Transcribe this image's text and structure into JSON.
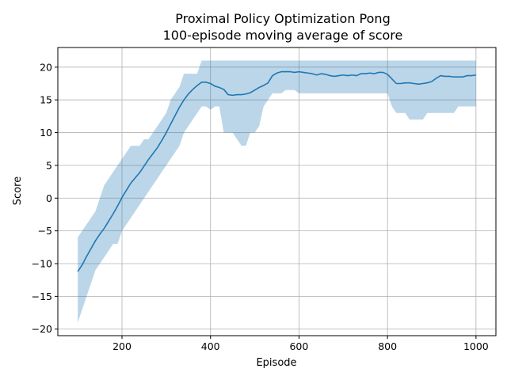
{
  "chart_data": {
    "type": "line",
    "title": "Proximal Policy Optimization Pong",
    "subtitle": "100-episode moving average of score",
    "xlabel": "Episode",
    "ylabel": "Score",
    "xlim": [
      55,
      1045
    ],
    "ylim": [
      -21,
      23
    ],
    "xticks": [
      200,
      400,
      600,
      800,
      1000
    ],
    "yticks": [
      -20,
      -15,
      -10,
      -5,
      0,
      5,
      10,
      15,
      20
    ],
    "grid": true,
    "series": [
      {
        "color": "#1f77b4",
        "band_color": "#1f77b4",
        "x": [
          100,
          110,
          120,
          130,
          140,
          150,
          160,
          170,
          180,
          190,
          200,
          210,
          220,
          230,
          240,
          250,
          260,
          270,
          280,
          290,
          300,
          310,
          320,
          330,
          340,
          350,
          360,
          370,
          380,
          390,
          400,
          410,
          420,
          430,
          440,
          450,
          460,
          470,
          480,
          490,
          500,
          510,
          520,
          530,
          540,
          550,
          560,
          570,
          580,
          590,
          600,
          610,
          620,
          630,
          640,
          650,
          660,
          670,
          680,
          690,
          700,
          710,
          720,
          730,
          740,
          750,
          760,
          770,
          780,
          790,
          800,
          810,
          820,
          830,
          840,
          850,
          860,
          870,
          880,
          890,
          900,
          910,
          920,
          930,
          940,
          950,
          960,
          970,
          980,
          990,
          1000
        ],
        "mean": [
          -11.2,
          -10.2,
          -8.9,
          -7.7,
          -6.5,
          -5.5,
          -4.6,
          -3.5,
          -2.4,
          -1.2,
          0.1,
          1.2,
          2.3,
          3.1,
          3.9,
          4.9,
          5.9,
          6.8,
          7.7,
          8.8,
          10.0,
          11.3,
          12.6,
          13.9,
          15.0,
          15.9,
          16.6,
          17.2,
          17.7,
          17.7,
          17.5,
          17.1,
          16.9,
          16.6,
          15.8,
          15.7,
          15.8,
          15.8,
          15.9,
          16.1,
          16.5,
          16.9,
          17.2,
          17.6,
          18.7,
          19.1,
          19.3,
          19.3,
          19.3,
          19.2,
          19.3,
          19.2,
          19.1,
          19.0,
          18.8,
          19.0,
          18.9,
          18.7,
          18.6,
          18.7,
          18.8,
          18.7,
          18.8,
          18.7,
          19.0,
          19.0,
          19.1,
          19.0,
          19.2,
          19.2,
          18.9,
          18.2,
          17.5,
          17.5,
          17.6,
          17.6,
          17.5,
          17.4,
          17.5,
          17.6,
          17.8,
          18.3,
          18.7,
          18.6,
          18.6,
          18.5,
          18.5,
          18.5,
          18.7,
          18.7,
          18.8
        ],
        "lower": [
          -19.0,
          -17.0,
          -15.0,
          -13.0,
          -11.0,
          -10.0,
          -9.0,
          -8.0,
          -7.0,
          -7.0,
          -5.0,
          -4.0,
          -3.0,
          -2.0,
          -1.0,
          0.0,
          1.0,
          2.0,
          3.0,
          4.0,
          5.0,
          6.0,
          7.0,
          8.0,
          10.0,
          11.0,
          12.0,
          13.0,
          14.0,
          14.0,
          13.5,
          14.0,
          14.0,
          10.0,
          10.0,
          10.0,
          9.0,
          8.0,
          8.0,
          10.0,
          10.0,
          11.0,
          14.0,
          15.0,
          16.0,
          16.0,
          16.0,
          16.5,
          16.5,
          16.5,
          16.0,
          16.0,
          16.0,
          16.0,
          16.0,
          16.0,
          16.0,
          16.0,
          16.0,
          16.0,
          16.0,
          16.0,
          16.0,
          16.0,
          16.0,
          16.0,
          16.0,
          16.0,
          16.0,
          16.0,
          16.0,
          14.0,
          13.0,
          13.0,
          13.0,
          12.0,
          12.0,
          12.0,
          12.0,
          13.0,
          13.0,
          13.0,
          13.0,
          13.0,
          13.0,
          13.0,
          14.0,
          14.0,
          14.0,
          14.0,
          14.0
        ],
        "upper": [
          -6.0,
          -5.0,
          -4.0,
          -3.0,
          -2.0,
          0.0,
          2.0,
          3.0,
          4.0,
          5.0,
          6.0,
          7.0,
          8.0,
          8.0,
          8.0,
          9.0,
          9.0,
          10.0,
          11.0,
          12.0,
          13.0,
          15.0,
          16.0,
          17.0,
          19.0,
          19.0,
          19.0,
          19.0,
          21.0,
          21.0,
          21.0,
          21.0,
          21.0,
          21.0,
          21.0,
          21.0,
          21.0,
          21.0,
          21.0,
          21.0,
          21.0,
          21.0,
          21.0,
          21.0,
          21.0,
          21.0,
          21.0,
          21.0,
          21.0,
          21.0,
          21.0,
          21.0,
          21.0,
          21.0,
          21.0,
          21.0,
          21.0,
          21.0,
          21.0,
          21.0,
          21.0,
          21.0,
          21.0,
          21.0,
          21.0,
          21.0,
          21.0,
          21.0,
          21.0,
          21.0,
          21.0,
          21.0,
          21.0,
          21.0,
          21.0,
          21.0,
          21.0,
          21.0,
          21.0,
          21.0,
          21.0,
          21.0,
          21.0,
          21.0,
          21.0,
          21.0,
          21.0,
          21.0,
          21.0,
          21.0,
          21.0
        ]
      }
    ]
  }
}
